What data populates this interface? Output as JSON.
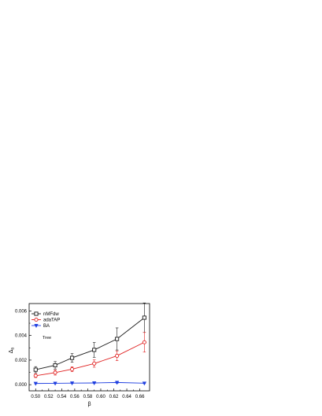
{
  "chart_data": {
    "type": "line",
    "xlabel": "β",
    "ylabel": "Δ",
    "ylabel_sub": "B",
    "annotation": "Tree",
    "xlim": [
      0.49,
      0.675
    ],
    "ylim": [
      -0.0005,
      0.0066
    ],
    "x_ticks": [
      "0.50",
      "0.52",
      "0.54",
      "0.56",
      "0.58",
      "0.60",
      "0.62",
      "0.64",
      "0.66"
    ],
    "x_tick_values": [
      0.5,
      0.52,
      0.54,
      0.56,
      0.58,
      0.6,
      0.62,
      0.64,
      0.66
    ],
    "y_ticks": [
      "0.000",
      "0.002",
      "0.004",
      "0.006"
    ],
    "y_tick_values": [
      0.0,
      0.002,
      0.004,
      0.006
    ],
    "x": [
      0.5,
      0.53,
      0.556,
      0.59,
      0.625,
      0.667
    ],
    "legend_position": "top-left",
    "series": [
      {
        "name": "nMFdw",
        "color": "#1a1a1a",
        "marker": "square",
        "values": [
          0.00122,
          0.00158,
          0.00218,
          0.00283,
          0.00372,
          0.00545
        ],
        "errors": [
          0.00025,
          0.0003,
          0.00035,
          0.0006,
          0.0009,
          0.0012
        ]
      },
      {
        "name": "adaTAP",
        "color": "#e02020",
        "marker": "circle",
        "values": [
          0.00073,
          0.00098,
          0.00126,
          0.00172,
          0.00235,
          0.00345
        ],
        "errors": [
          0.00015,
          0.0002,
          0.0002,
          0.0003,
          0.0004,
          0.0008
        ]
      },
      {
        "name": "BA",
        "color": "#1f3fe0",
        "marker": "triangle-down",
        "values": [
          0.0001,
          0.00011,
          0.00013,
          0.00014,
          0.00018,
          0.00012
        ],
        "errors": [
          3e-05,
          3e-05,
          3e-05,
          3e-05,
          6e-05,
          3e-05
        ]
      }
    ]
  }
}
